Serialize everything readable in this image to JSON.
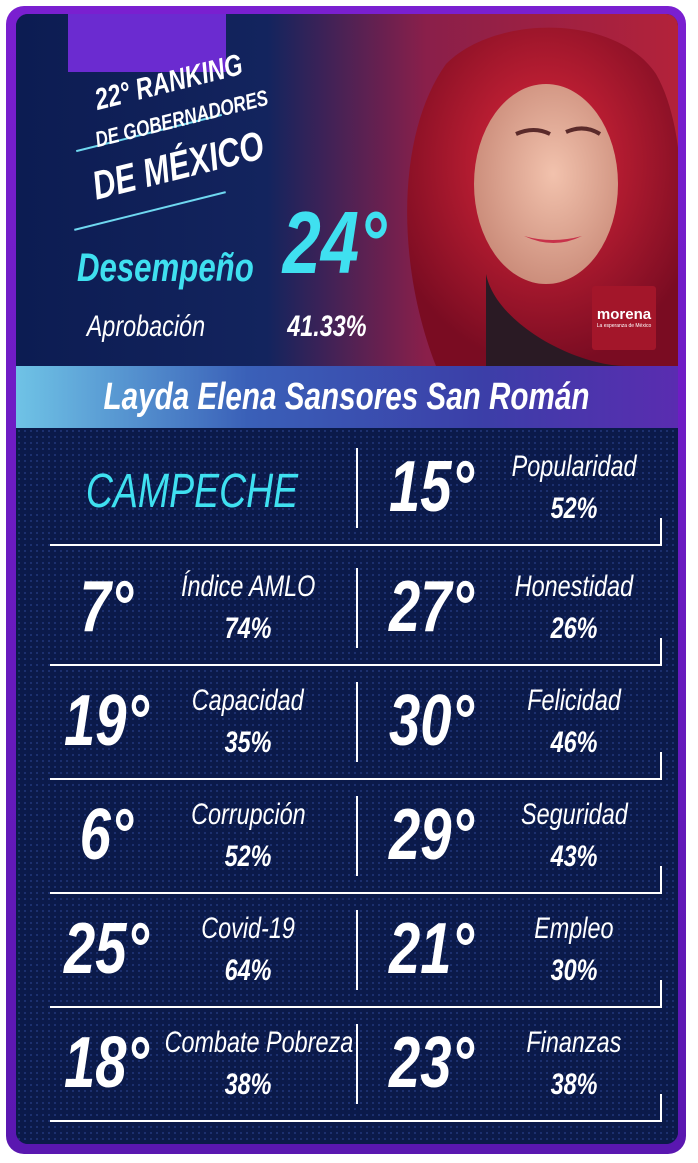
{
  "header": {
    "title_lines": [
      "22° RANKING",
      "DE GOBERNADORES",
      "DE MÉXICO"
    ],
    "performance_label": "Desempeño",
    "performance_rank": "24°",
    "approval_label": "Aprobación",
    "approval_value": "41.33%",
    "party": "morena",
    "party_slogan": "La esperanza de México"
  },
  "governor": "Layda Elena Sansores San Román",
  "state": "CAMPECHE",
  "metrics": [
    {
      "rank": "15°",
      "label": "Popularidad",
      "value": "52%"
    },
    {
      "rank": "7°",
      "label": "Índice AMLO",
      "value": "74%"
    },
    {
      "rank": "27°",
      "label": "Honestidad",
      "value": "26%"
    },
    {
      "rank": "19°",
      "label": "Capacidad",
      "value": "35%"
    },
    {
      "rank": "30°",
      "label": "Felicidad",
      "value": "46%"
    },
    {
      "rank": "6°",
      "label": "Corrupción",
      "value": "52%"
    },
    {
      "rank": "29°",
      "label": "Seguridad",
      "value": "43%"
    },
    {
      "rank": "25°",
      "label": "Covid-19",
      "value": "64%"
    },
    {
      "rank": "21°",
      "label": "Empleo",
      "value": "30%"
    },
    {
      "rank": "18°",
      "label": "Combate Pobreza",
      "value": "38%"
    },
    {
      "rank": "23°",
      "label": "Finanzas",
      "value": "38%"
    }
  ]
}
